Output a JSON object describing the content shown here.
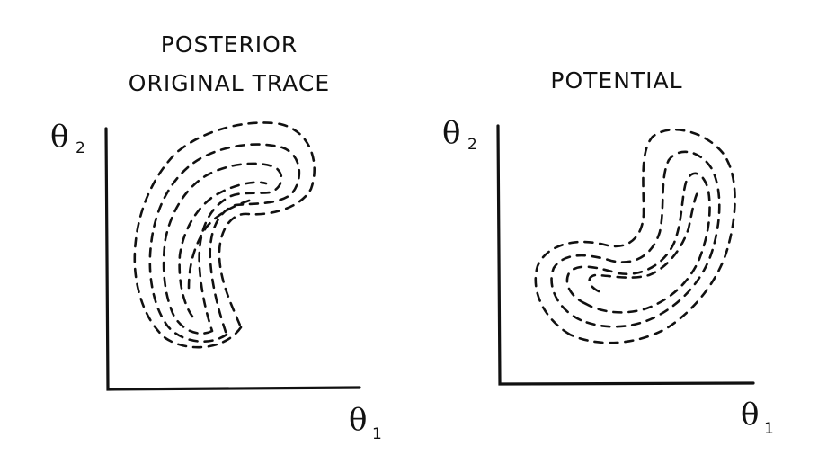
{
  "panels": [
    {
      "title_lines": [
        "POSTERIOR",
        "ORIGINAL TRACE"
      ],
      "y_axis": {
        "symbol": "θ",
        "subscript": "2"
      },
      "x_axis": {
        "symbol": "θ",
        "subscript": "1"
      }
    },
    {
      "title_lines": [
        "POTENTIAL"
      ],
      "y_axis": {
        "symbol": "θ",
        "subscript": "2"
      },
      "x_axis": {
        "symbol": "θ",
        "subscript": "1"
      }
    }
  ]
}
